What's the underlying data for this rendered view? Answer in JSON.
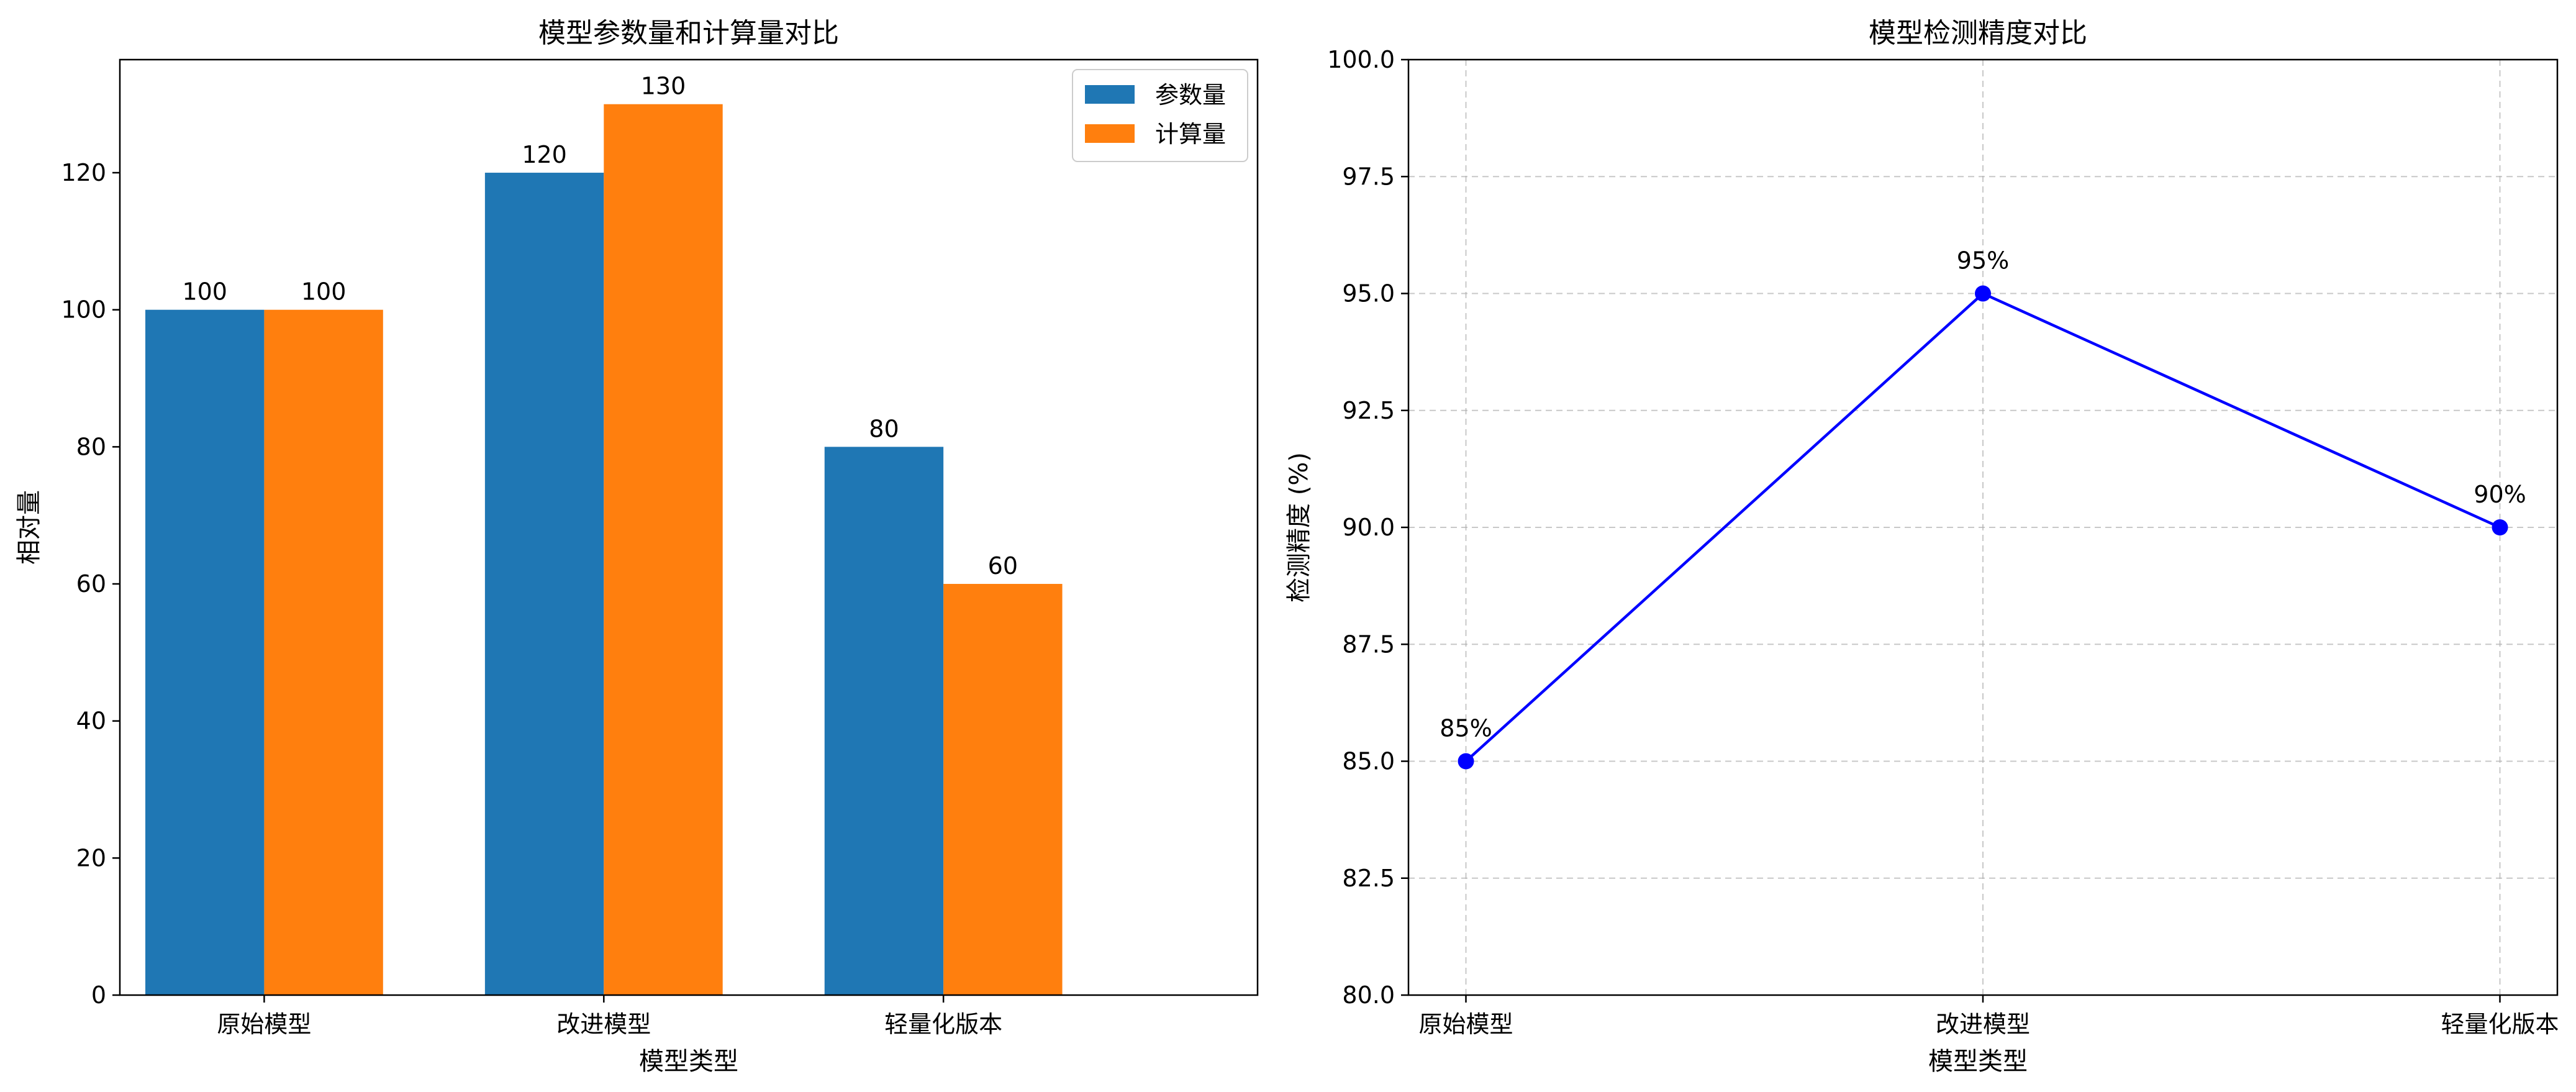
{
  "chart_data": [
    {
      "type": "bar",
      "title": "模型参数量和计算量对比",
      "xlabel": "模型类型",
      "ylabel": "相对量",
      "categories": [
        "原始模型",
        "改进模型",
        "轻量化版本"
      ],
      "series": [
        {
          "name": "参数量",
          "color": "#1f77b4",
          "values": [
            100,
            120,
            80
          ]
        },
        {
          "name": "计算量",
          "color": "#ff7f0e",
          "values": [
            100,
            130,
            60
          ]
        }
      ],
      "data_labels": [
        [
          "100",
          "100"
        ],
        [
          "120",
          "130"
        ],
        [
          "80",
          "60"
        ]
      ],
      "ylim": [
        0,
        136.5
      ],
      "yticks": [
        "0",
        "20",
        "40",
        "60",
        "80",
        "100",
        "120"
      ],
      "grid": false,
      "legend": "top-right"
    },
    {
      "type": "line",
      "title": "模型检测精度对比",
      "xlabel": "模型类型",
      "ylabel": "检测精度 (%)",
      "categories": [
        "原始模型",
        "改进模型",
        "轻量化版本"
      ],
      "series": [
        {
          "color": "#0000ff",
          "values": [
            85,
            95,
            90
          ]
        }
      ],
      "data_labels": [
        "85%",
        "95%",
        "90%"
      ],
      "ylim": [
        80,
        100
      ],
      "yticks": [
        "80.0",
        "82.5",
        "85.0",
        "87.5",
        "90.0",
        "92.5",
        "95.0",
        "97.5",
        "100.0"
      ],
      "grid": true,
      "marker": "circle"
    }
  ]
}
